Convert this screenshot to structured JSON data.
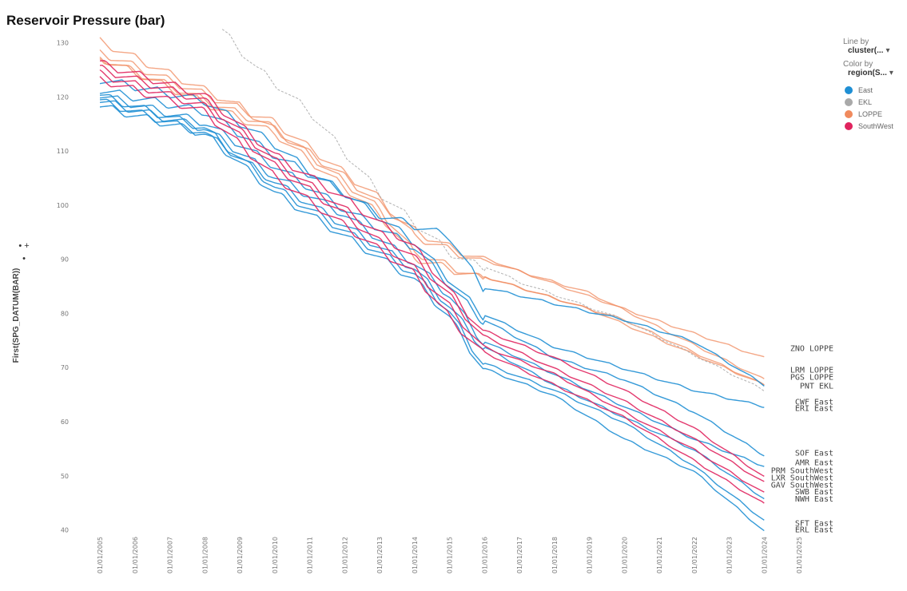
{
  "chart_data": {
    "type": "line",
    "title": "Reservoir Pressure (bar)",
    "ylabel": "First(SPG_DATUM(BAR))",
    "ylim": [
      42,
      132
    ],
    "yticks": [
      130,
      120,
      110,
      100,
      90,
      80,
      70,
      60,
      50,
      40
    ],
    "x_categories": [
      "01/01/2005",
      "01/01/2006",
      "01/01/2007",
      "01/01/2008",
      "01/01/2009",
      "01/01/2010",
      "01/01/2011",
      "01/01/2012",
      "01/01/2013",
      "01/01/2014",
      "01/01/2015",
      "01/01/2016",
      "01/01/2017",
      "01/01/2018",
      "01/01/2019",
      "01/01/2020",
      "01/01/2021",
      "01/01/2022",
      "01/01/2023",
      "01/01/2024",
      "01/01/2025"
    ],
    "legend": {
      "line_by_caption": "Line by",
      "line_by_value": "cluster(...",
      "color_by_caption": "Color by",
      "color_by_value": "region(S...",
      "items": [
        {
          "label": "East",
          "color": "#1f8fd4"
        },
        {
          "label": "EKL",
          "color": "#a9a9a9"
        },
        {
          "label": "LOPPE",
          "color": "#f08a5d"
        },
        {
          "label": "SouthWest",
          "color": "#e0245e"
        }
      ],
      "placement": "top-right"
    },
    "series": [
      {
        "name": "ZNO LOPPE",
        "region": "LOPPE",
        "points": [
          [
            0,
            131
          ],
          [
            4,
            119
          ],
          [
            7,
            106
          ],
          [
            9,
            96
          ],
          [
            10,
            93
          ],
          [
            12,
            88
          ],
          [
            15,
            81
          ],
          [
            19,
            72
          ]
        ]
      },
      {
        "name": "LRM LOPPE",
        "region": "LOPPE",
        "points": [
          [
            0,
            129
          ],
          [
            5,
            116
          ],
          [
            8,
            102
          ],
          [
            9,
            95
          ],
          [
            11,
            90
          ],
          [
            14,
            84
          ],
          [
            19,
            68
          ]
        ]
      },
      {
        "name": "PGS LOPPE",
        "region": "LOPPE",
        "points": [
          [
            0,
            128
          ],
          [
            5,
            115
          ],
          [
            8,
            100
          ],
          [
            9,
            92
          ],
          [
            11,
            87
          ],
          [
            14,
            81
          ],
          [
            19,
            67
          ]
        ]
      },
      {
        "name": "",
        "region": "LOPPE",
        "points": [
          [
            0,
            128
          ],
          [
            5,
            114
          ],
          [
            8,
            99
          ],
          [
            9,
            91
          ],
          [
            12,
            85
          ],
          [
            15,
            79
          ],
          [
            19,
            67
          ]
        ]
      },
      {
        "name": "PNT EKL",
        "region": "EKL",
        "points": [
          [
            3.5,
            133
          ],
          [
            4.5,
            126
          ],
          [
            6,
            118
          ],
          [
            8,
            103
          ],
          [
            10,
            92
          ],
          [
            12,
            86
          ],
          [
            15,
            79
          ],
          [
            19,
            66
          ]
        ]
      },
      {
        "name": "CWF East",
        "region": "East",
        "points": [
          [
            0,
            124
          ],
          [
            3,
            120
          ],
          [
            5,
            112
          ],
          [
            6,
            107
          ],
          [
            8,
            99
          ],
          [
            10,
            95
          ],
          [
            11,
            85
          ],
          [
            13,
            82
          ],
          [
            15,
            79
          ],
          [
            17,
            75
          ],
          [
            19,
            67
          ]
        ]
      },
      {
        "name": "ERI East",
        "region": "East",
        "points": [
          [
            0,
            122
          ],
          [
            3,
            118
          ],
          [
            5,
            110
          ],
          [
            7,
            103
          ],
          [
            9,
            94
          ],
          [
            10,
            87
          ],
          [
            11,
            80
          ],
          [
            13,
            74
          ],
          [
            15,
            70
          ],
          [
            17,
            66
          ],
          [
            19,
            63
          ]
        ]
      },
      {
        "name": "SOF East",
        "region": "East",
        "points": [
          [
            0,
            121
          ],
          [
            3,
            116
          ],
          [
            5,
            108
          ],
          [
            7,
            100
          ],
          [
            9,
            93
          ],
          [
            10,
            86
          ],
          [
            11,
            79
          ],
          [
            13,
            72
          ],
          [
            15,
            68
          ],
          [
            17,
            62
          ],
          [
            19,
            54
          ]
        ]
      },
      {
        "name": "AMR East",
        "region": "East",
        "points": [
          [
            0,
            120
          ],
          [
            3,
            115
          ],
          [
            5,
            106
          ],
          [
            7,
            99
          ],
          [
            9,
            90
          ],
          [
            10,
            84
          ],
          [
            11,
            75
          ],
          [
            13,
            69
          ],
          [
            15,
            63
          ],
          [
            17,
            57
          ],
          [
            19,
            52
          ]
        ]
      },
      {
        "name": "SWB East",
        "region": "East",
        "points": [
          [
            0,
            119
          ],
          [
            3,
            114
          ],
          [
            5,
            105
          ],
          [
            7,
            97
          ],
          [
            9,
            89
          ],
          [
            10,
            82
          ],
          [
            11,
            74
          ],
          [
            13,
            67
          ],
          [
            15,
            61
          ],
          [
            17,
            55
          ],
          [
            19,
            46
          ]
        ]
      },
      {
        "name": "NWH East",
        "region": "East",
        "points": [
          [
            0,
            121
          ],
          [
            3,
            115
          ],
          [
            5,
            104
          ],
          [
            7,
            96
          ],
          [
            9,
            88
          ],
          [
            10,
            81
          ],
          [
            11,
            71
          ],
          [
            13,
            66
          ],
          [
            15,
            60
          ],
          [
            17,
            52
          ],
          [
            19,
            42
          ]
        ]
      },
      {
        "name": "SFT East",
        "region": "East",
        "points": [
          [
            0,
            120
          ],
          [
            3,
            114
          ],
          [
            5,
            103
          ],
          [
            7,
            95
          ],
          [
            9,
            87
          ],
          [
            10,
            80
          ],
          [
            11,
            70
          ],
          [
            13,
            65
          ],
          [
            15,
            57
          ],
          [
            17,
            51
          ],
          [
            19,
            40
          ]
        ]
      },
      {
        "name": "PRM SouthWest",
        "region": "SouthWest",
        "points": [
          [
            0,
            127
          ],
          [
            3,
            121
          ],
          [
            5,
            110
          ],
          [
            7,
            102
          ],
          [
            9,
            93
          ],
          [
            10,
            85
          ],
          [
            11,
            77
          ],
          [
            13,
            72
          ],
          [
            15,
            66
          ],
          [
            17,
            59
          ],
          [
            19,
            50
          ]
        ]
      },
      {
        "name": "LXR SouthWest",
        "region": "SouthWest",
        "points": [
          [
            0,
            126
          ],
          [
            3,
            120
          ],
          [
            5,
            109
          ],
          [
            7,
            100
          ],
          [
            9,
            91
          ],
          [
            10,
            84
          ],
          [
            11,
            76
          ],
          [
            13,
            70
          ],
          [
            15,
            64
          ],
          [
            17,
            57
          ],
          [
            19,
            49
          ]
        ]
      },
      {
        "name": "GAV SouthWest",
        "region": "SouthWest",
        "points": [
          [
            0,
            125
          ],
          [
            3,
            119
          ],
          [
            5,
            108
          ],
          [
            7,
            99
          ],
          [
            9,
            89
          ],
          [
            10,
            82
          ],
          [
            11,
            74
          ],
          [
            13,
            69
          ],
          [
            15,
            62
          ],
          [
            17,
            55
          ],
          [
            19,
            47
          ]
        ]
      },
      {
        "name": "",
        "region": "SouthWest",
        "points": [
          [
            0,
            124
          ],
          [
            3,
            118
          ],
          [
            5,
            106
          ],
          [
            7,
            97
          ],
          [
            9,
            88
          ],
          [
            10,
            80
          ],
          [
            11,
            73
          ],
          [
            13,
            67
          ],
          [
            15,
            61
          ],
          [
            17,
            53
          ],
          [
            19,
            45
          ]
        ]
      }
    ],
    "end_labels": [
      {
        "text": "ZNO  LOPPE",
        "y": 73.5
      },
      {
        "text": "LRM  LOPPE",
        "y": 69.5
      },
      {
        "text": "PGS  LOPPE",
        "y": 68.2
      },
      {
        "text": "PNT  EKL",
        "y": 66.6
      },
      {
        "text": "CWF  East",
        "y": 63.6
      },
      {
        "text": "ERI  East",
        "y": 62.4
      },
      {
        "text": "SOF  East",
        "y": 54.2
      },
      {
        "text": "AMR  East",
        "y": 52.4
      },
      {
        "text": "PRM  SouthWest",
        "y": 50.9
      },
      {
        "text": "LXR  SouthWest",
        "y": 49.6
      },
      {
        "text": "GAV  SouthWest",
        "y": 48.3
      },
      {
        "text": "SWB  East",
        "y": 47.0
      },
      {
        "text": "NWH  East",
        "y": 45.7
      },
      {
        "text": "SFT  East",
        "y": 41.2
      },
      {
        "text": "ERL  East",
        "y": 40.0
      }
    ],
    "grid": false
  },
  "y_controls": "• + •"
}
